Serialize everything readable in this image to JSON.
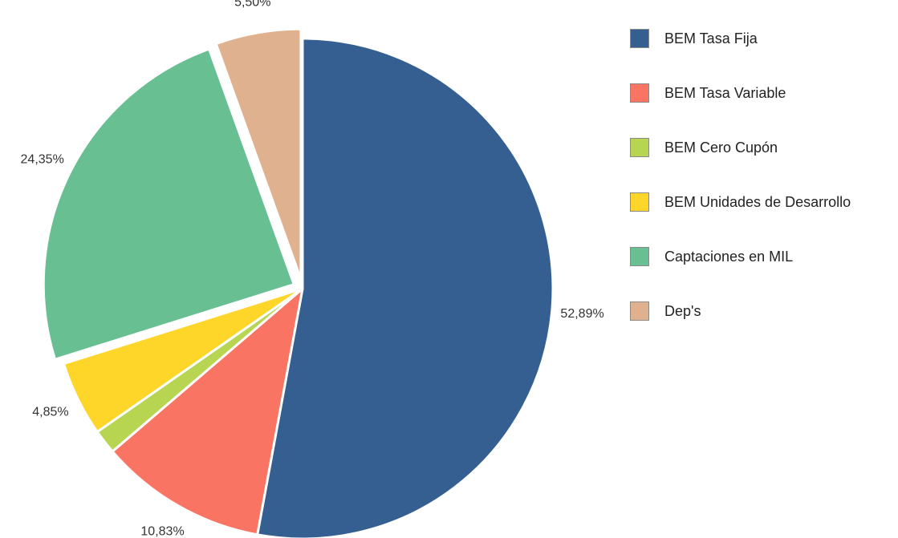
{
  "chart_data": {
    "type": "pie",
    "title": "",
    "categories": [
      "BEM Tasa Fija",
      "BEM Tasa Variable",
      "BEM Cero Cupón",
      "BEM Unidades de Desarrollo",
      "Captaciones en MIL",
      "Dep's"
    ],
    "values": [
      52.89,
      10.83,
      1.58,
      4.85,
      24.35,
      5.5
    ],
    "data_labels": [
      "52,89%",
      "10,83%",
      "",
      "4,85%",
      "24,35%",
      "5,50%"
    ],
    "colors": [
      "#365f91",
      "#f97462",
      "#b8d552",
      "#fdd629",
      "#67bf92",
      "#e0b18e"
    ],
    "exploded": [
      false,
      false,
      false,
      false,
      true,
      true
    ],
    "legend_position": "right"
  }
}
